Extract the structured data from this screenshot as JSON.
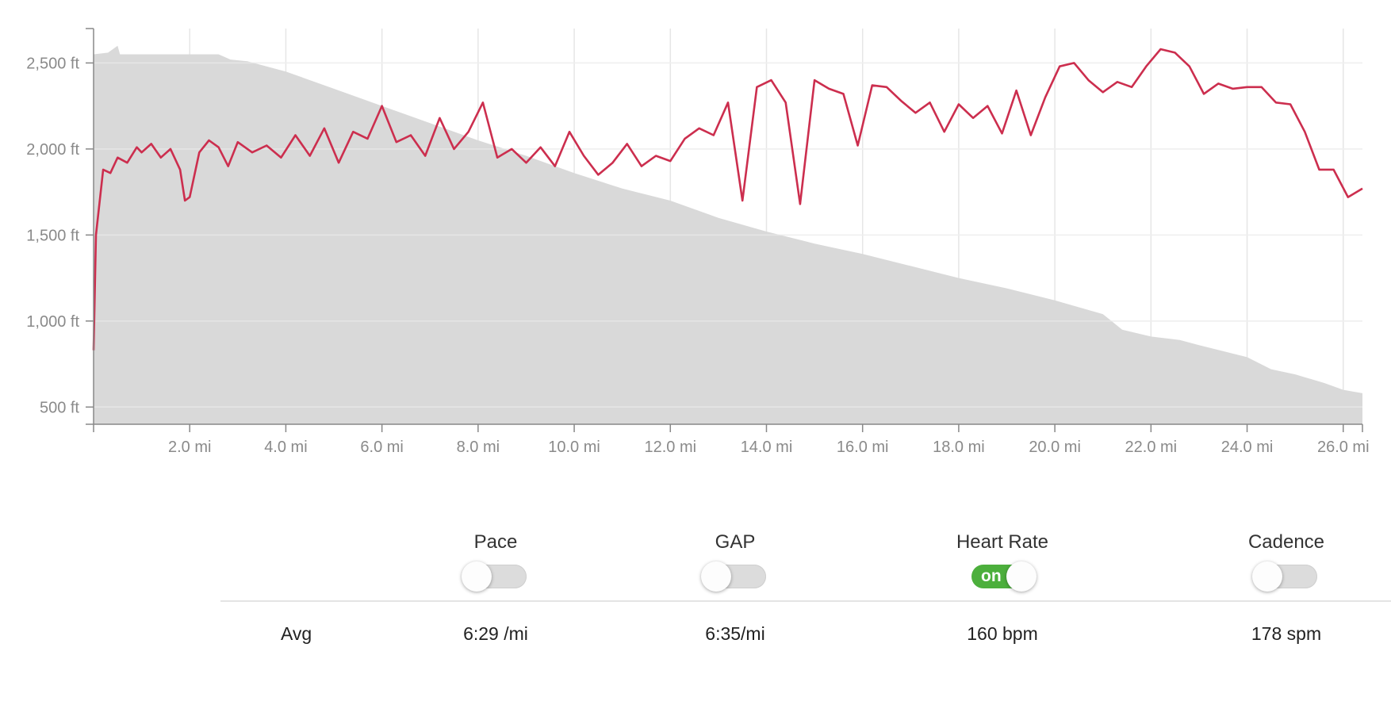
{
  "chart_data": {
    "type": "area",
    "y_ticks": [
      "500 ft",
      "1,000 ft",
      "1,500 ft",
      "2,000 ft",
      "2,500 ft"
    ],
    "y_tick_values": [
      500,
      1000,
      1500,
      2000,
      2500
    ],
    "x_ticks": [
      "2.0 mi",
      "4.0 mi",
      "6.0 mi",
      "8.0 mi",
      "10.0 mi",
      "12.0 mi",
      "14.0 mi",
      "16.0 mi",
      "18.0 mi",
      "20.0 mi",
      "22.0 mi",
      "24.0 mi",
      "26.0 mi"
    ],
    "x_tick_values": [
      2,
      4,
      6,
      8,
      10,
      12,
      14,
      16,
      18,
      20,
      22,
      24,
      26
    ],
    "xlim": [
      0,
      26.4
    ],
    "ylim": [
      400,
      2700
    ],
    "grid": true,
    "series": [
      {
        "kind": "elevation-area",
        "color": "#d9d9d9",
        "x": [
          0,
          0.3,
          0.5,
          0.55,
          2.6,
          2.85,
          3.2,
          4.0,
          5.0,
          6.0,
          7.0,
          8.0,
          9.0,
          10.0,
          11.0,
          12.0,
          13.0,
          14.0,
          15.0,
          16.0,
          17.0,
          18.0,
          19.0,
          20.0,
          21.0,
          21.4,
          22.0,
          22.6,
          23.0,
          24.0,
          24.5,
          25.0,
          25.6,
          26.0,
          26.4
        ],
        "y": [
          2550,
          2560,
          2600,
          2550,
          2550,
          2520,
          2510,
          2450,
          2350,
          2250,
          2150,
          2050,
          1960,
          1860,
          1770,
          1700,
          1600,
          1520,
          1450,
          1390,
          1320,
          1250,
          1190,
          1120,
          1040,
          950,
          910,
          890,
          860,
          790,
          720,
          690,
          640,
          600,
          580
        ]
      },
      {
        "kind": "heart-rate-line",
        "color": "#cc2e4e",
        "x": [
          0,
          0.05,
          0.2,
          0.35,
          0.5,
          0.7,
          0.9,
          1.0,
          1.2,
          1.4,
          1.6,
          1.8,
          1.9,
          2.0,
          2.2,
          2.4,
          2.6,
          2.8,
          3.0,
          3.3,
          3.6,
          3.9,
          4.2,
          4.5,
          4.8,
          5.1,
          5.4,
          5.7,
          6.0,
          6.3,
          6.6,
          6.9,
          7.2,
          7.5,
          7.8,
          8.1,
          8.4,
          8.7,
          9.0,
          9.3,
          9.6,
          9.9,
          10.2,
          10.5,
          10.8,
          11.1,
          11.4,
          11.7,
          12.0,
          12.3,
          12.6,
          12.9,
          13.2,
          13.5,
          13.8,
          14.1,
          14.4,
          14.7,
          15.0,
          15.3,
          15.6,
          15.9,
          16.2,
          16.5,
          16.8,
          17.1,
          17.4,
          17.7,
          18.0,
          18.3,
          18.6,
          18.9,
          19.2,
          19.5,
          19.8,
          20.1,
          20.4,
          20.7,
          21.0,
          21.3,
          21.6,
          21.9,
          22.2,
          22.5,
          22.8,
          23.1,
          23.4,
          23.7,
          24.0,
          24.3,
          24.6,
          24.9,
          25.2,
          25.5,
          25.8,
          26.1,
          26.4
        ],
        "y": [
          830,
          1500,
          1880,
          1860,
          1950,
          1920,
          2010,
          1980,
          2030,
          1950,
          2000,
          1880,
          1700,
          1720,
          1980,
          2050,
          2010,
          1900,
          2040,
          1980,
          2020,
          1950,
          2080,
          1960,
          2120,
          1920,
          2100,
          2060,
          2250,
          2040,
          2080,
          1960,
          2180,
          2000,
          2100,
          2270,
          1950,
          2000,
          1920,
          2010,
          1900,
          2100,
          1960,
          1850,
          1920,
          2030,
          1900,
          1960,
          1930,
          2060,
          2120,
          2080,
          2270,
          1700,
          2360,
          2400,
          2270,
          1680,
          2400,
          2350,
          2320,
          2020,
          2370,
          2360,
          2280,
          2210,
          2270,
          2100,
          2260,
          2180,
          2250,
          2090,
          2340,
          2080,
          2300,
          2480,
          2500,
          2400,
          2330,
          2390,
          2360,
          2480,
          2580,
          2560,
          2480,
          2320,
          2380,
          2350,
          2360,
          2360,
          2270,
          2260,
          2100,
          1880,
          1880,
          1720,
          1770
        ]
      }
    ]
  },
  "metrics": [
    {
      "label": "Pace",
      "toggle_on": false,
      "avg_number": "6:29",
      "avg_unit": " /mi"
    },
    {
      "label": "GAP",
      "toggle_on": false,
      "avg_number": "6:35",
      "avg_unit": "/mi"
    },
    {
      "label": "Heart Rate",
      "toggle_on": true,
      "toggle_text": "on",
      "avg_number": "160",
      "avg_unit": " bpm"
    },
    {
      "label": "Cadence",
      "toggle_on": false,
      "avg_number": "178",
      "avg_unit": " spm"
    }
  ],
  "avg_row_label": "Avg",
  "colors": {
    "heart_rate_line": "#cc2e4e",
    "elevation_fill": "#d9d9d9",
    "toggle_on": "#4caf3c",
    "toggle_off": "#dcdcdc"
  }
}
